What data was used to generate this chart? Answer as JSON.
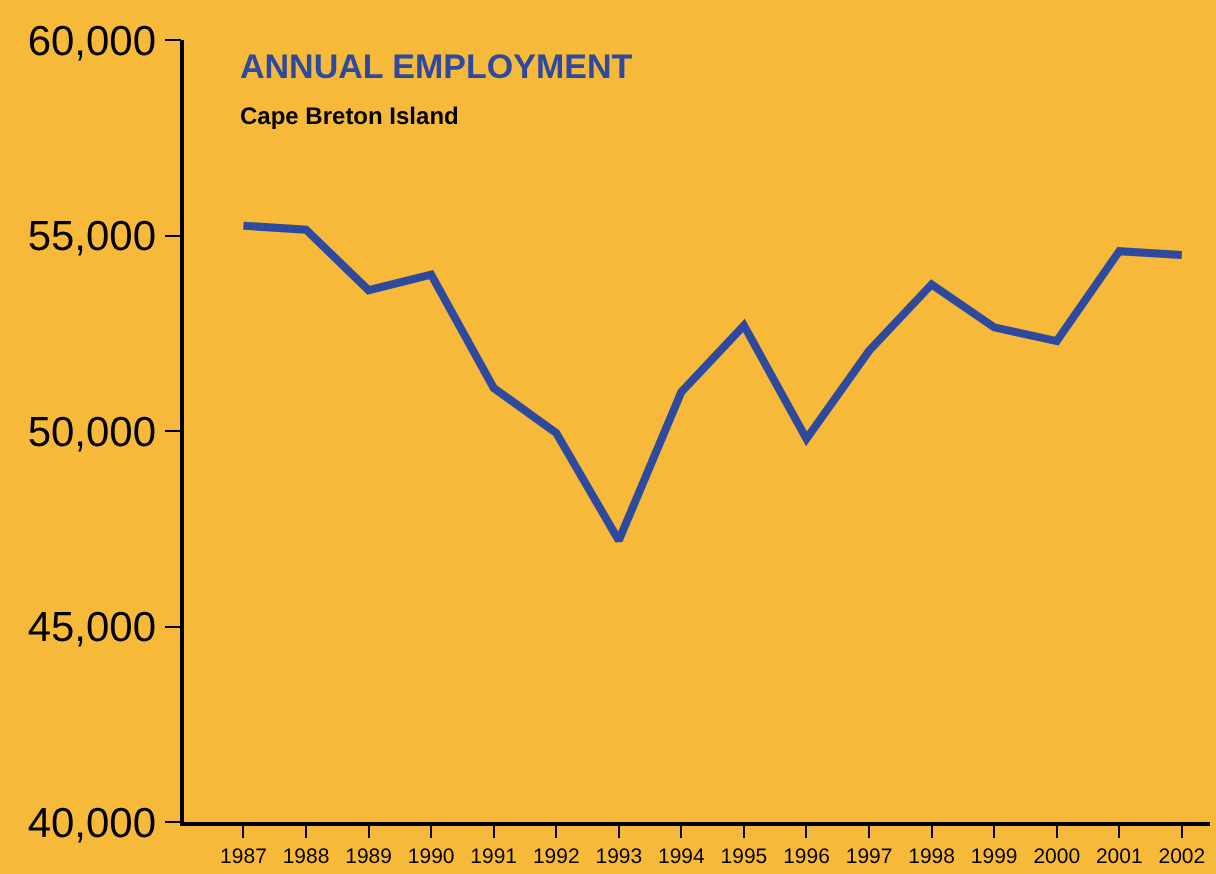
{
  "chart_data": {
    "type": "line",
    "title": "ANNUAL EMPLOYMENT",
    "subtitle": "Cape Breton Island",
    "categories": [
      "1987",
      "1988",
      "1989",
      "1990",
      "1991",
      "1992",
      "1993",
      "1994",
      "1995",
      "1996",
      "1997",
      "1998",
      "1999",
      "2000",
      "2001",
      "2002"
    ],
    "series": [
      {
        "color": "#2e4a9e",
        "values": [
          55250,
          55150,
          53600,
          54000,
          51100,
          49950,
          47200,
          51000,
          52700,
          49800,
          52050,
          53750,
          52650,
          52300,
          54600,
          54500
        ]
      }
    ],
    "ylim": [
      40000,
      60000
    ],
    "yticks": [
      {
        "value": 40000,
        "label": "40,000"
      },
      {
        "value": 45000,
        "label": "45,000"
      },
      {
        "value": 50000,
        "label": "50,000"
      },
      {
        "value": 55000,
        "label": "55,000"
      },
      {
        "value": 60000,
        "label": "60,000"
      }
    ],
    "grid": false,
    "marker": "none",
    "line_style": "solid"
  }
}
